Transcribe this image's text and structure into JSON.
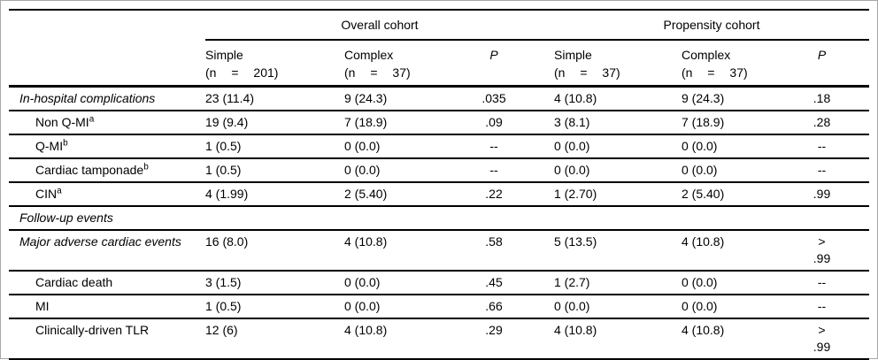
{
  "table": {
    "col_groups": [
      {
        "label": "Overall cohort"
      },
      {
        "label": "Propensity cohort"
      }
    ],
    "columns": [
      {
        "name": "Simple",
        "n": "(n = 201)"
      },
      {
        "name": "Complex",
        "n": "(n = 37)"
      },
      {
        "name": "P"
      },
      {
        "name": "Simple",
        "n": "(n = 37)"
      },
      {
        "name": "Complex",
        "n": "(n = 37)"
      },
      {
        "name": "P"
      }
    ],
    "rows": [
      {
        "label": "In-hospital complications",
        "sup": "",
        "style": "section",
        "values": [
          "23 (11.4)",
          "9 (24.3)",
          ".035",
          "4 (10.8)",
          "9 (24.3)",
          ".18"
        ]
      },
      {
        "label": "Non Q-MI",
        "sup": "a",
        "style": "item",
        "values": [
          "19 (9.4)",
          "7 (18.9)",
          ".09",
          "3 (8.1)",
          "7 (18.9)",
          ".28"
        ]
      },
      {
        "label": "Q-MI",
        "sup": "b",
        "style": "item",
        "values": [
          "1 (0.5)",
          "0 (0.0)",
          "--",
          "0 (0.0)",
          "0 (0.0)",
          "--"
        ]
      },
      {
        "label": "Cardiac tamponade",
        "sup": "b",
        "style": "item",
        "values": [
          "1 (0.5)",
          "0 (0.0)",
          "--",
          "0 (0.0)",
          "0 (0.0)",
          "--"
        ]
      },
      {
        "label": "CIN",
        "sup": "a",
        "style": "item",
        "values": [
          "4 (1.99)",
          "2 (5.40)",
          ".22",
          "1 (2.70)",
          "2 (5.40)",
          ".99"
        ]
      },
      {
        "label": "Follow-up events",
        "sup": "",
        "style": "section",
        "values": [
          "",
          "",
          "",
          "",
          "",
          ""
        ]
      },
      {
        "label": "Major adverse cardiac events",
        "sup": "",
        "style": "section two-line",
        "values": [
          "16 (8.0)",
          "4 (10.8)",
          ".58",
          "5 (13.5)",
          "4 (10.8)",
          "> .99"
        ]
      },
      {
        "label": "Cardiac death",
        "sup": "",
        "style": "item",
        "values": [
          "3 (1.5)",
          "0 (0.0)",
          ".45",
          "1 (2.7)",
          "0 (0.0)",
          "--"
        ]
      },
      {
        "label": "MI",
        "sup": "",
        "style": "item",
        "values": [
          "1 (0.5)",
          "0 (0.0)",
          ".66",
          "0 (0.0)",
          "0 (0.0)",
          "--"
        ]
      },
      {
        "label": "Clinically-driven TLR",
        "sup": "",
        "style": "item",
        "values": [
          "12 (6)",
          "4 (10.8)",
          ".29",
          "4 (10.8)",
          "4 (10.8)",
          "> .99"
        ]
      }
    ]
  },
  "colors": {
    "text": "#000000",
    "rule": "#000000",
    "background": "#ffffff",
    "frame_border": "#a6a6a6"
  }
}
